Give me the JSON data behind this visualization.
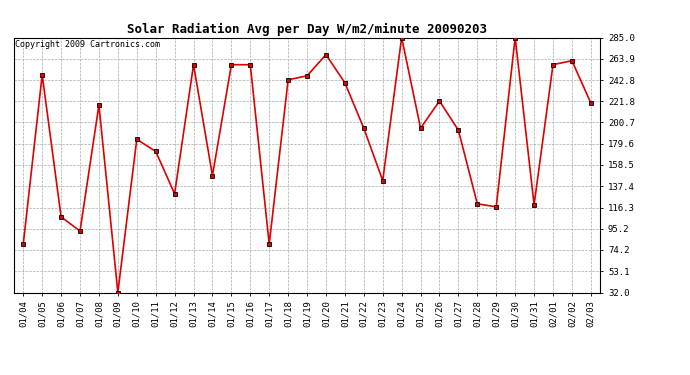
{
  "title": "Solar Radiation Avg per Day W/m2/minute 20090203",
  "copyright": "Copyright 2009 Cartronics.com",
  "dates": [
    "01/04",
    "01/05",
    "01/06",
    "01/07",
    "01/08",
    "01/09",
    "01/10",
    "01/11",
    "01/12",
    "01/13",
    "01/14",
    "01/15",
    "01/16",
    "01/17",
    "01/18",
    "01/19",
    "01/20",
    "01/21",
    "01/22",
    "01/23",
    "01/24",
    "01/25",
    "01/26",
    "01/27",
    "01/28",
    "01/29",
    "01/30",
    "01/31",
    "02/01",
    "02/02",
    "02/03"
  ],
  "values": [
    80,
    248,
    107,
    93,
    218,
    32,
    184,
    172,
    130,
    258,
    148,
    258,
    258,
    80,
    243,
    247,
    268,
    240,
    195,
    143,
    285,
    195,
    222,
    193,
    120,
    117,
    285,
    119,
    258,
    262,
    220
  ],
  "ylim": [
    32.0,
    285.0
  ],
  "yticks": [
    32.0,
    53.1,
    74.2,
    95.2,
    116.3,
    137.4,
    158.5,
    179.6,
    200.7,
    221.8,
    242.8,
    263.9,
    285.0
  ],
  "line_color": "#dd0000",
  "bg_color": "#ffffff",
  "grid_color": "#aaaaaa",
  "title_fontsize": 9,
  "tick_fontsize": 6.5,
  "copyright_fontsize": 6
}
